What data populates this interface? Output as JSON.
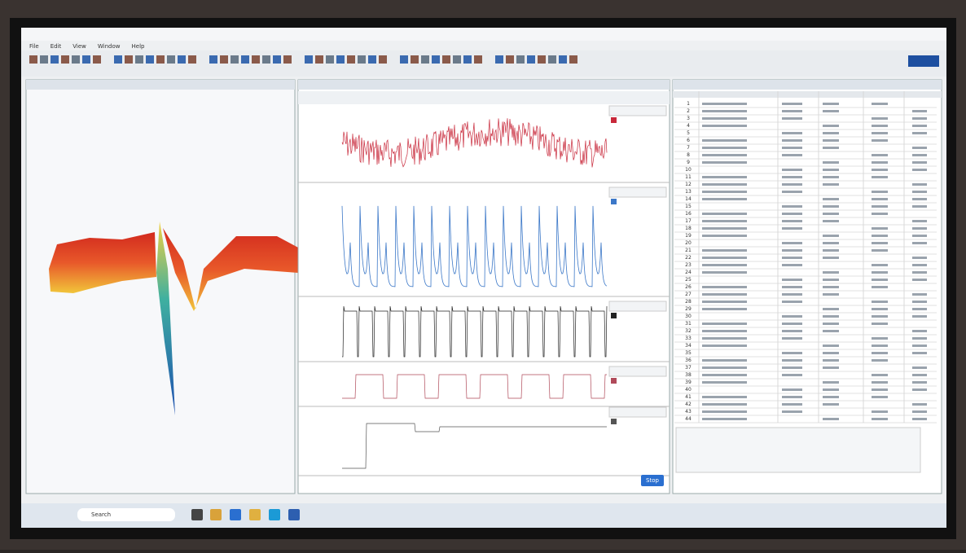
{
  "menu": [
    "File",
    "Edit",
    "View",
    "Window",
    "Help"
  ],
  "table": {
    "row_numbers": [
      1,
      2,
      3,
      4,
      5,
      6,
      7,
      8,
      9,
      10,
      11,
      12,
      13,
      14,
      15,
      16,
      17,
      18,
      19,
      20,
      21,
      22,
      23,
      24,
      25,
      26,
      27,
      28,
      29,
      30,
      31,
      32,
      33,
      34,
      35,
      36,
      37,
      38,
      39,
      40,
      41,
      42,
      43,
      44
    ]
  },
  "buttons": {
    "stop": "Stop"
  },
  "taskbar": {
    "search": "Search"
  }
}
